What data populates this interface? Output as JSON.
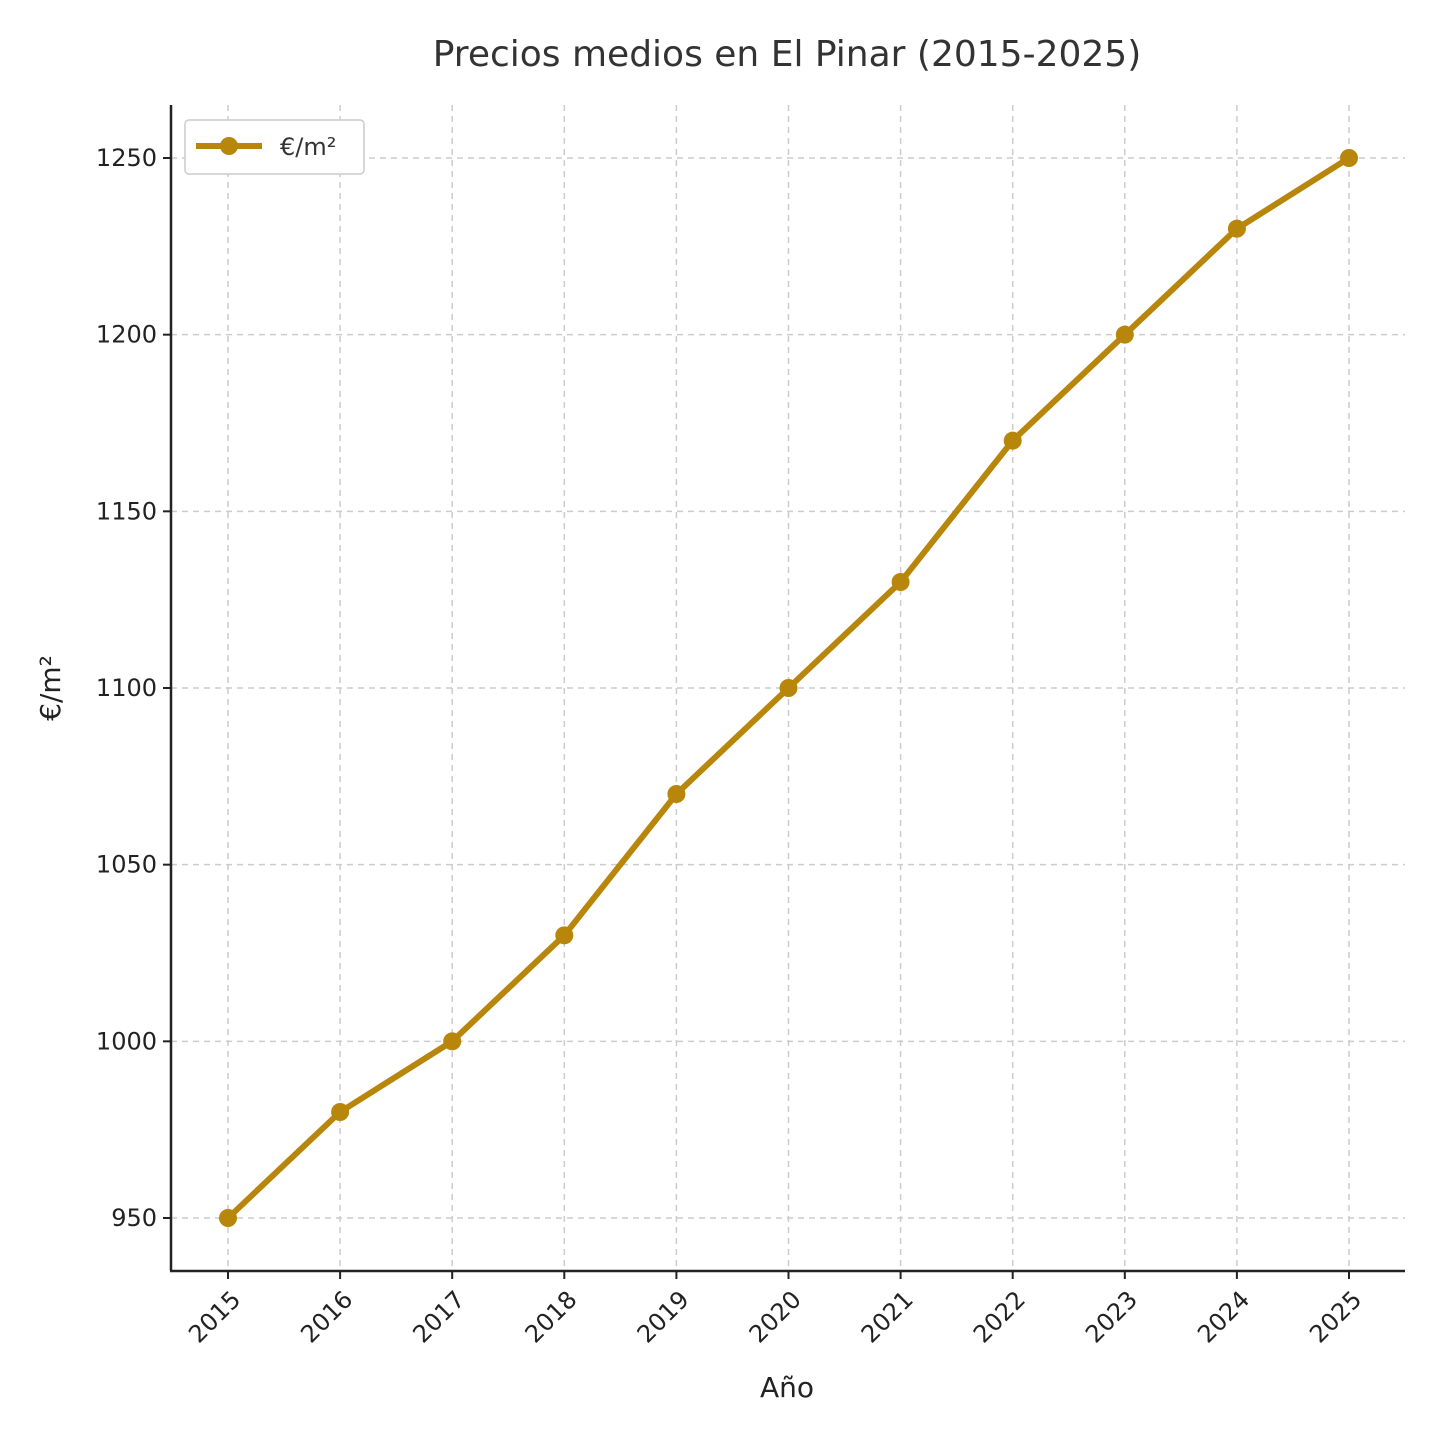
{
  "chart_data": {
    "type": "line",
    "title": "Precios medios en El Pinar (2015-2025)",
    "xlabel": "Año",
    "ylabel": "€/m²",
    "x": [
      "2015",
      "2016",
      "2017",
      "2018",
      "2019",
      "2020",
      "2021",
      "2022",
      "2023",
      "2024",
      "2025"
    ],
    "series": [
      {
        "name": "€/m²",
        "values": [
          950,
          980,
          1000,
          1030,
          1070,
          1100,
          1130,
          1170,
          1200,
          1230,
          1250
        ],
        "color": "#b8860b"
      }
    ],
    "yticks": [
      950,
      1000,
      1050,
      1100,
      1150,
      1200,
      1250
    ],
    "ylim": [
      935,
      1265
    ],
    "grid": true,
    "grid_style": "dashed",
    "legend_position": "top-left"
  }
}
